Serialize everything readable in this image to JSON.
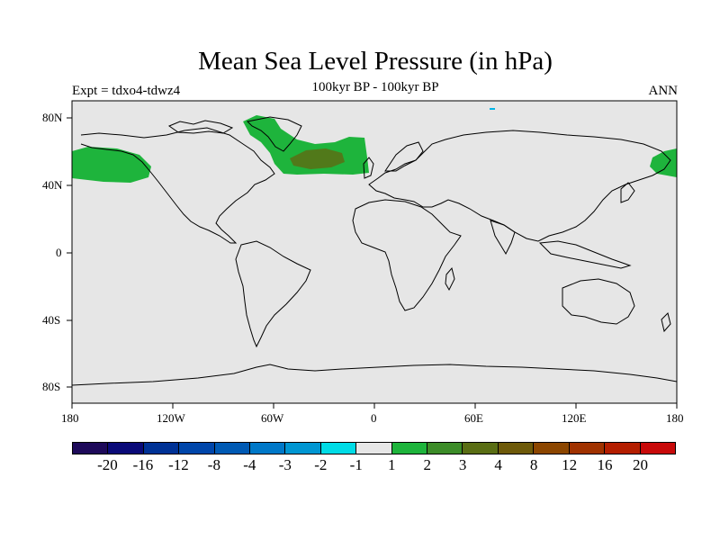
{
  "title": "Mean Sea Level Pressure (in hPa)",
  "subtitle": "100kyr BP - 100kyr BP",
  "left_label": "Expt = tdxo4-tdwz4",
  "right_label": "ANN",
  "map": {
    "background_color": "#e6e6e6",
    "lon_ticks": [
      "180",
      "120W",
      "60W",
      "0",
      "60E",
      "120E",
      "180"
    ],
    "lat_ticks": [
      "80N",
      "40N",
      "0",
      "40S",
      "80S"
    ]
  },
  "colorbar": {
    "colors": [
      "#1e0a5a",
      "#0a0a78",
      "#003296",
      "#0046aa",
      "#005ab4",
      "#0078c8",
      "#0096d2",
      "#00dce6",
      "#e6e6e6",
      "#1eb43c",
      "#3c8c28",
      "#5a6e14",
      "#6e5a0a",
      "#8c4600",
      "#a03200",
      "#b41e00",
      "#c80a0a"
    ],
    "labels": [
      "-20",
      "-16",
      "-12",
      "-8",
      "-4",
      "-3",
      "-2",
      "-1",
      "1",
      "2",
      "3",
      "4",
      "8",
      "12",
      "16",
      "20"
    ]
  }
}
